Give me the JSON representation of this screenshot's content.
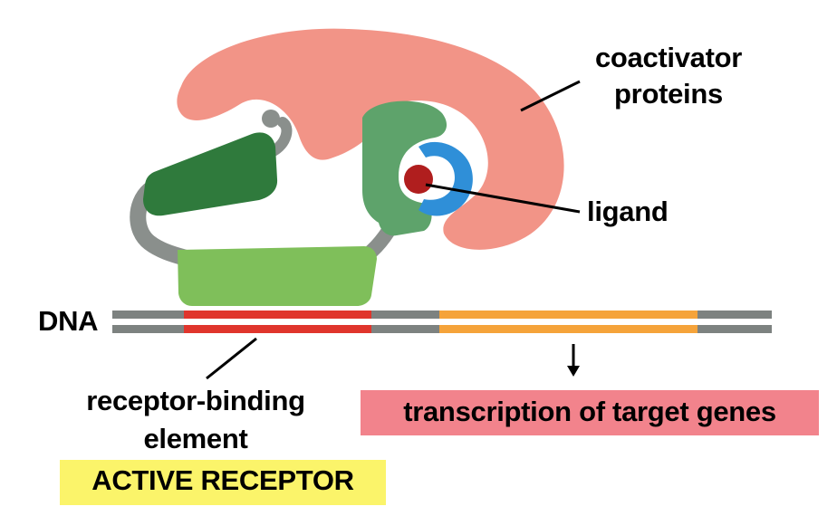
{
  "labels": {
    "coactivator": "coactivator\nproteins",
    "ligand": "ligand",
    "dna": "DNA",
    "receptor_binding_element": "receptor-binding\nelement",
    "transcription": "transcription of target genes",
    "active_receptor": "ACTIVE RECEPTOR"
  },
  "colors": {
    "coactivator": "#f29487",
    "receptor_dark_green": "#2f7a3c",
    "receptor_mid_green": "#5ea36b",
    "receptor_light_green": "#7fbf5a",
    "linker_gray": "#8a8f8c",
    "ligand_pocket_blue": "#2f8fd8",
    "ligand_red": "#b01e1e",
    "dna_gray": "#7d8280",
    "binding_element_red": "#e0352c",
    "target_gene_orange": "#f5a33a",
    "transcription_box": "#f2838c",
    "active_box": "#fbf46a"
  }
}
